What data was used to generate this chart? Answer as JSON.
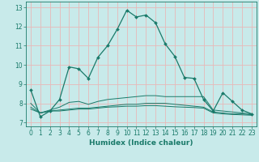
{
  "xlabel": "Humidex (Indice chaleur)",
  "xlim": [
    -0.5,
    23.5
  ],
  "ylim": [
    6.8,
    13.3
  ],
  "yticks": [
    7,
    8,
    9,
    10,
    11,
    12,
    13
  ],
  "xticks": [
    0,
    1,
    2,
    3,
    4,
    5,
    6,
    7,
    8,
    9,
    10,
    11,
    12,
    13,
    14,
    15,
    16,
    17,
    18,
    19,
    20,
    21,
    22,
    23
  ],
  "bg_color": "#c8eaea",
  "grid_color": "#e8b8b8",
  "line_color": "#1a7a6a",
  "line1_x": [
    0,
    1,
    2,
    3,
    4,
    5,
    6,
    7,
    8,
    9,
    10,
    11,
    12,
    13,
    14,
    15,
    16,
    17,
    18,
    19,
    20,
    21,
    22,
    23
  ],
  "line1_y": [
    8.7,
    7.3,
    7.6,
    8.2,
    9.9,
    9.8,
    9.3,
    10.4,
    11.0,
    11.85,
    12.85,
    12.5,
    12.6,
    12.2,
    11.1,
    10.45,
    9.35,
    9.3,
    8.2,
    7.6,
    8.55,
    8.1,
    7.65,
    7.45
  ],
  "line2_x": [
    0,
    1,
    2,
    3,
    4,
    5,
    6,
    7,
    8,
    9,
    10,
    11,
    12,
    13,
    14,
    15,
    16,
    17,
    18,
    19,
    20,
    21,
    22,
    23
  ],
  "line2_y": [
    8.0,
    7.5,
    7.65,
    7.8,
    8.05,
    8.1,
    7.95,
    8.1,
    8.2,
    8.25,
    8.3,
    8.35,
    8.4,
    8.4,
    8.35,
    8.35,
    8.35,
    8.35,
    8.35,
    7.65,
    7.6,
    7.55,
    7.5,
    7.45
  ],
  "line3_x": [
    0,
    1,
    2,
    3,
    4,
    5,
    6,
    7,
    8,
    9,
    10,
    11,
    12,
    13,
    14,
    15,
    16,
    17,
    18,
    19,
    20,
    21,
    22,
    23
  ],
  "line3_y": [
    7.8,
    7.5,
    7.6,
    7.65,
    7.7,
    7.75,
    7.75,
    7.8,
    7.85,
    7.9,
    7.95,
    7.95,
    8.0,
    8.0,
    8.0,
    7.95,
    7.9,
    7.85,
    7.8,
    7.55,
    7.5,
    7.45,
    7.45,
    7.4
  ],
  "line4_x": [
    0,
    1,
    2,
    3,
    4,
    5,
    6,
    7,
    8,
    9,
    10,
    11,
    12,
    13,
    14,
    15,
    16,
    17,
    18,
    19,
    20,
    21,
    22,
    23
  ],
  "line4_y": [
    7.7,
    7.5,
    7.6,
    7.6,
    7.65,
    7.7,
    7.7,
    7.75,
    7.8,
    7.82,
    7.85,
    7.85,
    7.88,
    7.88,
    7.85,
    7.82,
    7.8,
    7.78,
    7.75,
    7.5,
    7.45,
    7.42,
    7.4,
    7.38
  ],
  "xlabel_fontsize": 6.5,
  "tick_fontsize": 5.5
}
